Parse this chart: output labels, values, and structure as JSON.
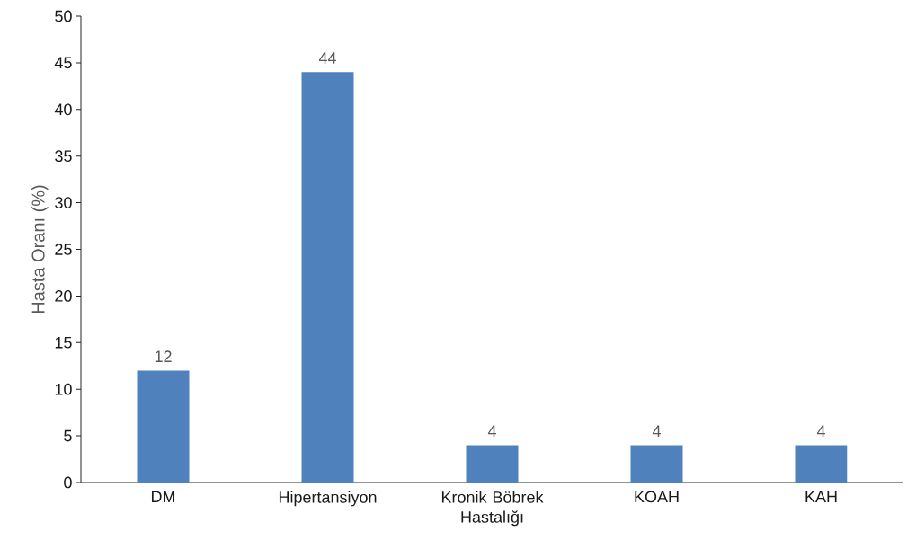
{
  "chart_data": {
    "type": "bar",
    "ylabel": "Hasta Oranı (%)",
    "categories": [
      "DM",
      "Hipertansiyon",
      "Kronik Böbrek Hastalığı",
      "KOAH",
      "KAH"
    ],
    "values": [
      12,
      44,
      4,
      4,
      4
    ],
    "color": "#4f81bd",
    "ylim": [
      0,
      50
    ],
    "yticks": [
      0,
      5,
      10,
      15,
      20,
      25,
      30,
      35,
      40,
      45,
      50
    ],
    "data_labels": true,
    "grid": false
  }
}
